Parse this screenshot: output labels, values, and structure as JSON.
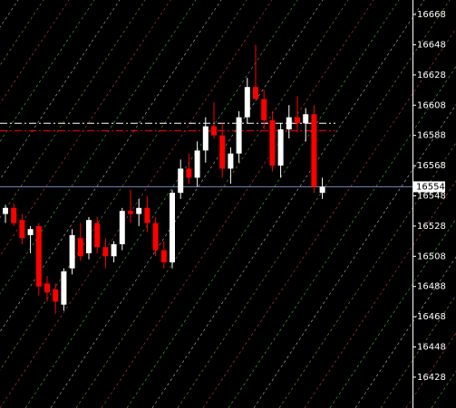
{
  "chart_data": {
    "type": "candlestick",
    "open": [
      16536,
      16540,
      16532,
      16522,
      16528,
      16490,
      16486,
      16476,
      16500,
      16520,
      16510,
      16530,
      16514,
      16508,
      16516,
      16538,
      16536,
      16540,
      16530,
      16512,
      16504,
      16550,
      16566,
      16560,
      16578,
      16594,
      16588,
      16566,
      16576,
      16600,
      16620,
      16612,
      16598,
      16568,
      16592,
      16600,
      16596,
      16602,
      16550
    ],
    "high": [
      16542,
      16543,
      16536,
      16528,
      16530,
      16495,
      16490,
      16500,
      16526,
      16530,
      16534,
      16534,
      16520,
      16518,
      16540,
      16552,
      16546,
      16548,
      16534,
      16518,
      16552,
      16572,
      16576,
      16584,
      16600,
      16610,
      16596,
      16580,
      16604,
      16626,
      16648,
      16618,
      16604,
      16596,
      16608,
      16614,
      16606,
      16608,
      16560
    ],
    "low": [
      16530,
      16528,
      16516,
      16510,
      16482,
      16478,
      16470,
      16472,
      16496,
      16505,
      16506,
      16510,
      16500,
      16504,
      16512,
      16530,
      16528,
      16524,
      16508,
      16500,
      16500,
      16546,
      16556,
      16554,
      16570,
      16586,
      16560,
      16556,
      16570,
      16596,
      16614,
      16592,
      16564,
      16560,
      16586,
      16590,
      16584,
      16550,
      16546
    ],
    "close": [
      16540,
      16530,
      16520,
      16526,
      16488,
      16484,
      16478,
      16498,
      16522,
      16508,
      16532,
      16514,
      16508,
      16516,
      16538,
      16536,
      16540,
      16530,
      16512,
      16504,
      16550,
      16566,
      16560,
      16578,
      16594,
      16588,
      16566,
      16576,
      16600,
      16620,
      16612,
      16598,
      16568,
      16592,
      16600,
      16596,
      16602,
      16554,
      16554
    ],
    "up_color": "#ffffff",
    "down_color": "#ff0000",
    "ylim": [
      16407.6,
      16677.6
    ],
    "yticks": [
      16668,
      16648,
      16628,
      16608,
      16588,
      16568,
      16548,
      16528,
      16508,
      16488,
      16468,
      16448,
      16428
    ],
    "current_price": 16554,
    "levels": [
      {
        "value": 16596,
        "color": "#ffffff"
      },
      {
        "value": 16591,
        "color": "#ff0000"
      }
    ]
  }
}
